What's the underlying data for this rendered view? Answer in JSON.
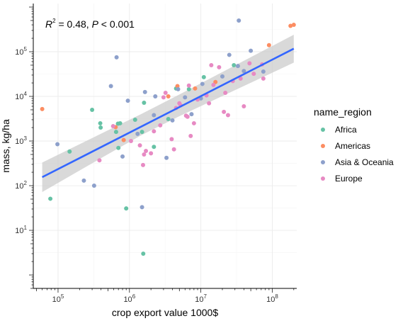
{
  "chart_data": {
    "type": "scatter",
    "annotation": {
      "r2_symbol": "R",
      "r2_sup": "2",
      "r2_value": " = 0.48, ",
      "p_symbol": "P",
      "p_value": " < 0.001"
    },
    "xlabel": "crop export value 1000$",
    "ylabel": "mass, kg/ha",
    "x_scale": "log10",
    "y_scale": "log10",
    "xlim": [
      45000,
      220000000
    ],
    "ylim": [
      0.5,
      1200000
    ],
    "x_ticks": [
      {
        "value": 100000,
        "base": "10",
        "exp": "5"
      },
      {
        "value": 1000000,
        "base": "10",
        "exp": "6"
      },
      {
        "value": 10000000,
        "base": "10",
        "exp": "7"
      },
      {
        "value": 100000000,
        "base": "10",
        "exp": "8"
      }
    ],
    "y_ticks": [
      {
        "value": 10,
        "base": "10",
        "exp": "1"
      },
      {
        "value": 100,
        "base": "10",
        "exp": "2"
      },
      {
        "value": 1000,
        "base": "10",
        "exp": "3"
      },
      {
        "value": 10000,
        "base": "10",
        "exp": "4"
      },
      {
        "value": 100000,
        "base": "10",
        "exp": "5"
      }
    ],
    "grid": true,
    "legend_placement": "right",
    "legend": {
      "title": "name_region"
    },
    "regression": {
      "color": "#3366ff",
      "band_color": "#cccccc",
      "x_range": [
        60000,
        200000000
      ],
      "line": [
        [
          60000,
          155
        ],
        [
          200000000,
          117000
        ]
      ],
      "band_upper": [
        [
          60000,
          330
        ],
        [
          450000,
          1600
        ],
        [
          1500000,
          4100
        ],
        [
          5000000,
          11000
        ],
        [
          200000000,
          240000
        ]
      ],
      "band_lower": [
        [
          60000,
          72
        ],
        [
          450000,
          460
        ],
        [
          1500000,
          1380
        ],
        [
          5000000,
          3600
        ],
        [
          200000000,
          57000
        ]
      ]
    },
    "series": [
      {
        "name": "Africa",
        "color": "#66c2a5",
        "points": [
          [
            78000,
            51
          ],
          [
            145000,
            580
          ],
          [
            300000,
            5000
          ],
          [
            390000,
            2500
          ],
          [
            395000,
            2000
          ],
          [
            650000,
            1600
          ],
          [
            690000,
            2450
          ],
          [
            740000,
            2500
          ],
          [
            700000,
            700
          ],
          [
            900000,
            31
          ],
          [
            1200000,
            3000
          ],
          [
            1500000,
            1600
          ],
          [
            1600000,
            7200
          ],
          [
            1560000,
            3
          ],
          [
            2200000,
            740
          ],
          [
            3500000,
            3100
          ],
          [
            4500000,
            15000
          ],
          [
            6800000,
            14500
          ],
          [
            11000000,
            27000
          ],
          [
            29000000,
            50000
          ]
        ]
      },
      {
        "name": "Americas",
        "color": "#fc8d62",
        "points": [
          [
            60000,
            5200
          ],
          [
            640000,
            2050
          ],
          [
            830000,
            1050
          ],
          [
            3500000,
            10000
          ],
          [
            4700000,
            17000
          ],
          [
            8300000,
            15000
          ],
          [
            16000000,
            21000
          ],
          [
            90000000,
            140000
          ],
          [
            180000000,
            380000
          ],
          [
            200000000,
            400000
          ]
        ]
      },
      {
        "name": "Asia & Oceania",
        "color": "#8da0cb",
        "points": [
          [
            98000,
            850
          ],
          [
            230000,
            130
          ],
          [
            320000,
            100
          ],
          [
            550000,
            17000
          ],
          [
            660000,
            75000
          ],
          [
            800000,
            450
          ],
          [
            950000,
            8000
          ],
          [
            1300000,
            1450
          ],
          [
            1500000,
            33
          ],
          [
            1650000,
            12500
          ],
          [
            2300000,
            10000
          ],
          [
            2200000,
            3800
          ],
          [
            3300000,
            420
          ],
          [
            4000000,
            2900
          ],
          [
            4800000,
            14500
          ],
          [
            6000000,
            9500
          ],
          [
            7400000,
            4000
          ],
          [
            10000000,
            9000
          ],
          [
            10500000,
            19000
          ],
          [
            20000000,
            28000
          ],
          [
            25000000,
            85000
          ],
          [
            33000000,
            48000
          ],
          [
            34000000,
            500000
          ],
          [
            40000000,
            37000
          ],
          [
            50000000,
            105000
          ],
          [
            75000000,
            36000
          ]
        ]
      },
      {
        "name": "Europe",
        "color": "#e78ac3",
        "points": [
          [
            380000,
            370
          ],
          [
            590000,
            2150
          ],
          [
            1050000,
            1000
          ],
          [
            1400000,
            800
          ],
          [
            1550000,
            290
          ],
          [
            1600000,
            500
          ],
          [
            1700000,
            600
          ],
          [
            2000000,
            530
          ],
          [
            2200000,
            1650
          ],
          [
            2700000,
            2250
          ],
          [
            3000000,
            9500
          ],
          [
            3200000,
            12000
          ],
          [
            3900000,
            1100
          ],
          [
            4200000,
            650
          ],
          [
            4500000,
            5500
          ],
          [
            5000000,
            7000
          ],
          [
            5200000,
            6300
          ],
          [
            6200000,
            3700
          ],
          [
            6500000,
            3500
          ],
          [
            6800000,
            17500
          ],
          [
            7200000,
            1300
          ],
          [
            8000000,
            2500
          ],
          [
            9000000,
            8500
          ],
          [
            12000000,
            10500
          ],
          [
            13000000,
            7000
          ],
          [
            14000000,
            50000
          ],
          [
            15000000,
            18000
          ],
          [
            18000000,
            45000
          ],
          [
            21000000,
            4500
          ],
          [
            22000000,
            12000
          ],
          [
            24000000,
            3800
          ],
          [
            28000000,
            22000
          ],
          [
            36000000,
            25000
          ],
          [
            40000000,
            6000
          ],
          [
            48000000,
            55000
          ],
          [
            55000000,
            32000
          ],
          [
            75000000,
            25000
          ],
          [
            72000000,
            52000
          ]
        ]
      }
    ]
  }
}
